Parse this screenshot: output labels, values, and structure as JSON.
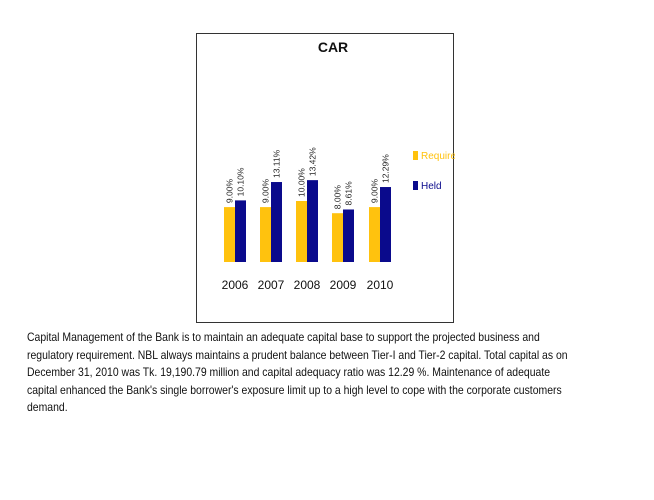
{
  "chart_data": {
    "type": "bar",
    "title": "CAR",
    "categories": [
      "2006",
      "2007",
      "2008",
      "2009",
      "2010"
    ],
    "series": [
      {
        "name": "Required",
        "values": [
          9.0,
          9.0,
          10.0,
          8.0,
          9.0
        ],
        "labels": [
          "9.00%",
          "9.00%",
          "10.00%",
          "8.00%",
          "9.00%"
        ],
        "color": "#FFC20E"
      },
      {
        "name": "Held",
        "values": [
          10.1,
          13.11,
          13.42,
          8.61,
          12.29
        ],
        "labels": [
          "10.10%",
          "13.11%",
          "13.42%",
          "8.61%",
          "12.29%"
        ],
        "color": "#0A0A8C"
      }
    ],
    "xlabel": "",
    "ylabel": "",
    "legend_position": "right",
    "grid": false
  },
  "caption": {
    "text": "Capital Management of the Bank is to maintain an adequate capital base to support the projected business and regulatory requirement. NBL always maintains a prudent balance between Tier-I and Tier-2 capital. Total capital as on December 31, 2010 was Tk. 19,190.79 million and capital adequacy ratio was 12.29 %. Maintenance of adequate capital enhanced the Bank's single borrower's exposure limit up to a high level to cope with the corporate customers demand."
  }
}
